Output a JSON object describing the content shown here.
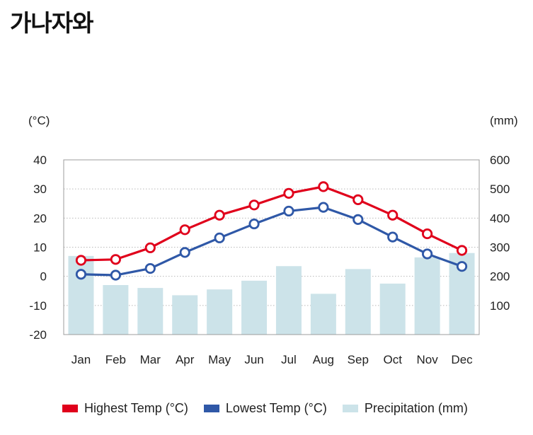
{
  "title": "가나자와",
  "chart_data": {
    "type": "bar",
    "categories": [
      "Jan",
      "Feb",
      "Mar",
      "Apr",
      "May",
      "Jun",
      "Jul",
      "Aug",
      "Sep",
      "Oct",
      "Nov",
      "Dec"
    ],
    "series": [
      {
        "name": "Highest Temp (°C)",
        "type": "line",
        "axis": "left",
        "color": "#e0001b",
        "values": [
          5.5,
          5.8,
          9.8,
          16,
          21,
          24.5,
          28.5,
          30.8,
          26.3,
          21,
          14.6,
          8.9
        ]
      },
      {
        "name": "Lowest Temp (°C)",
        "type": "line",
        "axis": "left",
        "color": "#2f58a7",
        "values": [
          0.7,
          0.4,
          2.7,
          8.2,
          13.2,
          18,
          22.4,
          23.7,
          19.5,
          13.5,
          7.7,
          3.4
        ]
      },
      {
        "name": "Precipitation (mm)",
        "type": "bar",
        "axis": "right",
        "color": "#cce3e9",
        "values": [
          270,
          170,
          160,
          135,
          155,
          185,
          235,
          140,
          225,
          175,
          265,
          280
        ]
      }
    ],
    "y_left": {
      "unit": "(°C)",
      "range": [
        -20,
        40
      ],
      "ticks": [
        "40",
        "30",
        "20",
        "10",
        "0",
        "-10",
        "-20"
      ]
    },
    "y_right": {
      "unit": "(mm)",
      "range": [
        0,
        600
      ],
      "ticks": [
        "600",
        "500",
        "400",
        "300",
        "200",
        "100"
      ]
    },
    "grid": "horizontal dotted",
    "legend": "bottom"
  }
}
